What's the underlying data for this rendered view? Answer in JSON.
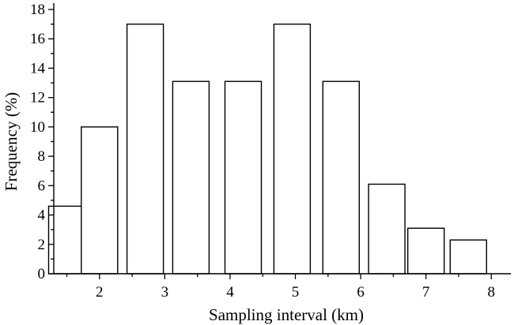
{
  "chart_data": {
    "type": "bar",
    "title": "",
    "xlabel": "Sampling interval (km)",
    "ylabel": "Frequency (%)",
    "bars": [
      {
        "x": 1.5,
        "value": 4.6
      },
      {
        "x": 2.0,
        "value": 10.0
      },
      {
        "x": 2.7,
        "value": 17.0
      },
      {
        "x": 3.4,
        "value": 13.1
      },
      {
        "x": 4.2,
        "value": 13.1
      },
      {
        "x": 4.95,
        "value": 17.0
      },
      {
        "x": 5.7,
        "value": 13.1
      },
      {
        "x": 6.4,
        "value": 6.1
      },
      {
        "x": 7.0,
        "value": 3.1
      },
      {
        "x": 7.65,
        "value": 2.3
      }
    ],
    "xlim": [
      1.3,
      8.3
    ],
    "ylim": [
      0,
      18
    ],
    "xticks": [
      "2",
      "3",
      "4",
      "5",
      "6",
      "7",
      "8"
    ],
    "yticks": [
      "0",
      "2",
      "4",
      "6",
      "8",
      "10",
      "12",
      "14",
      "16",
      "18"
    ],
    "grid": false,
    "bar_fill": "#ffffff",
    "bar_stroke": "#000000"
  }
}
